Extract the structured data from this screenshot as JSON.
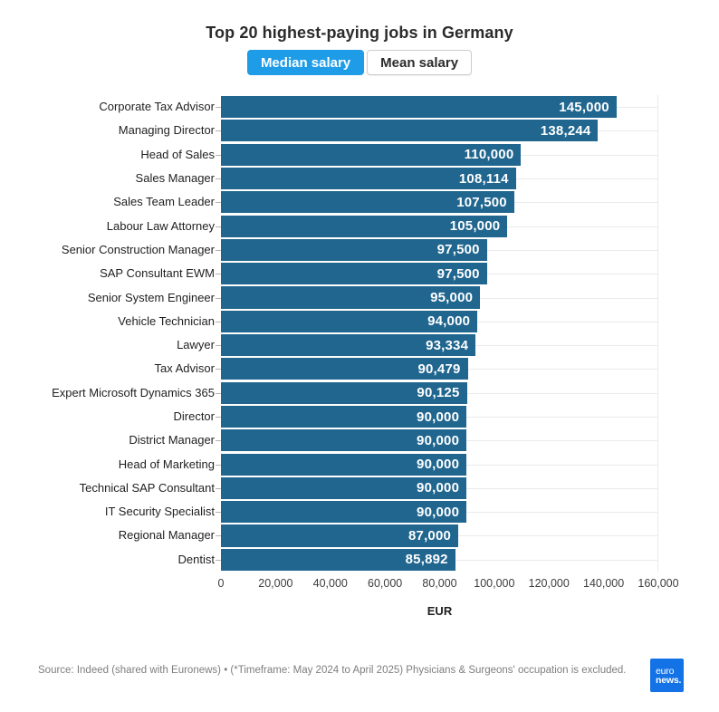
{
  "header": {
    "title": "Top 20 highest-paying jobs in Germany",
    "tabs": [
      {
        "label": "Median salary",
        "active": true
      },
      {
        "label": "Mean salary",
        "active": false
      }
    ]
  },
  "chart_data": {
    "type": "bar",
    "orientation": "horizontal",
    "title": "Top 20 highest-paying jobs in Germany",
    "active_series": "Median salary",
    "categories": [
      "Corporate Tax Advisor",
      "Managing Director",
      "Head of Sales",
      "Sales Manager",
      "Sales Team Leader",
      "Labour Law Attorney",
      "Senior Construction Manager",
      "SAP Consultant EWM",
      "Senior System Engineer",
      "Vehicle Technician",
      "Lawyer",
      "Tax Advisor",
      "Expert Microsoft Dynamics 365",
      "Director",
      "District Manager",
      "Head of Marketing",
      "Technical SAP Consultant",
      "IT Security Specialist",
      "Regional Manager",
      "Dentist"
    ],
    "values": [
      145000,
      138244,
      110000,
      108114,
      107500,
      105000,
      97500,
      97500,
      95000,
      94000,
      93334,
      90479,
      90125,
      90000,
      90000,
      90000,
      90000,
      90000,
      87000,
      85892
    ],
    "value_labels": [
      "145,000",
      "138,244",
      "110,000",
      "108,114",
      "107,500",
      "105,000",
      "97,500",
      "97,500",
      "95,000",
      "94,000",
      "93,334",
      "90,479",
      "90,125",
      "90,000",
      "90,000",
      "90,000",
      "90,000",
      "90,000",
      "87,000",
      "85,892"
    ],
    "xlabel": "EUR",
    "xlim": [
      0,
      160000
    ],
    "x_tick_values": [
      0,
      20000,
      40000,
      60000,
      80000,
      100000,
      120000,
      140000,
      160000
    ],
    "x_tick_labels": [
      "0",
      "20,000",
      "40,000",
      "60,000",
      "80,000",
      "100,000",
      "120,000",
      "140,000",
      "160,000"
    ],
    "grid": "horizontal row lines, light",
    "legend_position": "none",
    "bar_color": "#20668f",
    "value_label_color": "#ffffff"
  },
  "footer": {
    "source": "Source: Indeed (shared with Euronews) • (*Timeframe: May 2024 to April 2025) Physicians & Surgeons' occupation is excluded.",
    "logo": {
      "line1": "euro",
      "line2": "news.",
      "color": "#1373e6"
    }
  },
  "colors": {
    "bar": "#20668f",
    "active_tab": "#1e9ce8",
    "gridline": "#eaeaea",
    "source_text": "#7e7e7e"
  }
}
